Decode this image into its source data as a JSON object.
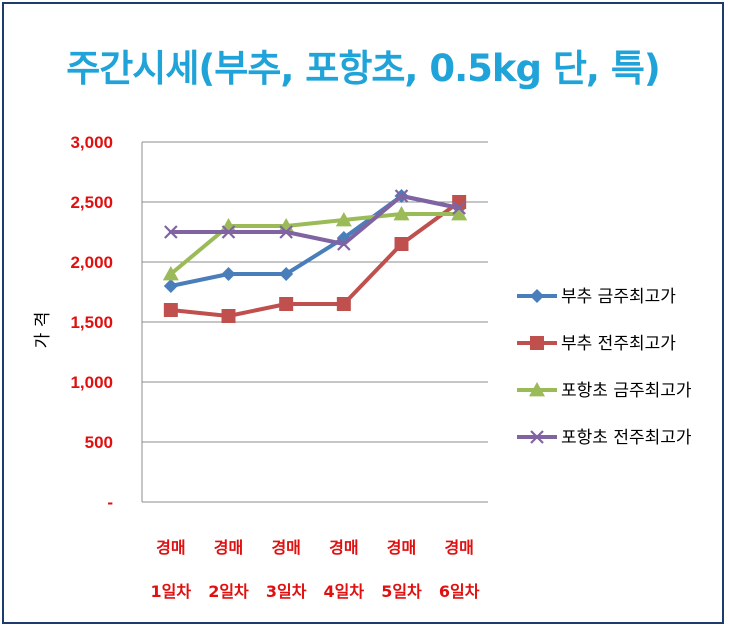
{
  "chart_data": {
    "type": "line",
    "title": "주간시세(부추, 포항초, 0.5kg 단, 특)",
    "ylabel": "가 격",
    "xlabel": "",
    "ylim": [
      0,
      3000
    ],
    "yticks": [
      {
        "value": 0,
        "label": "-"
      },
      {
        "value": 500,
        "label": "500"
      },
      {
        "value": 1000,
        "label": "1,000"
      },
      {
        "value": 1500,
        "label": "1,500"
      },
      {
        "value": 2000,
        "label": "2,000"
      },
      {
        "value": 2500,
        "label": "2,500"
      },
      {
        "value": 3000,
        "label": "3,000"
      }
    ],
    "categories": [
      {
        "line1": "경매",
        "line2": "1일차"
      },
      {
        "line1": "경매",
        "line2": "2일차"
      },
      {
        "line1": "경매",
        "line2": "3일차"
      },
      {
        "line1": "경매",
        "line2": "4일차"
      },
      {
        "line1": "경매",
        "line2": "5일차"
      },
      {
        "line1": "경매",
        "line2": "6일차"
      }
    ],
    "grid": true,
    "legend_position": "right",
    "series": [
      {
        "name": "부추 금주최고가",
        "values": [
          1800,
          1900,
          1900,
          2200,
          2550,
          2450
        ],
        "color": "#4a7ebb",
        "marker": "diamond"
      },
      {
        "name": "부추 전주최고가",
        "values": [
          1600,
          1550,
          1650,
          1650,
          2150,
          2500
        ],
        "color": "#c0504d",
        "marker": "square"
      },
      {
        "name": "포항초 금주최고가",
        "values": [
          1900,
          2300,
          2300,
          2350,
          2400,
          2400
        ],
        "color": "#9bbb59",
        "marker": "triangle"
      },
      {
        "name": "포항초 전주최고가",
        "values": [
          2250,
          2250,
          2250,
          2150,
          2550,
          2450
        ],
        "color": "#8064a2",
        "marker": "x"
      }
    ]
  }
}
